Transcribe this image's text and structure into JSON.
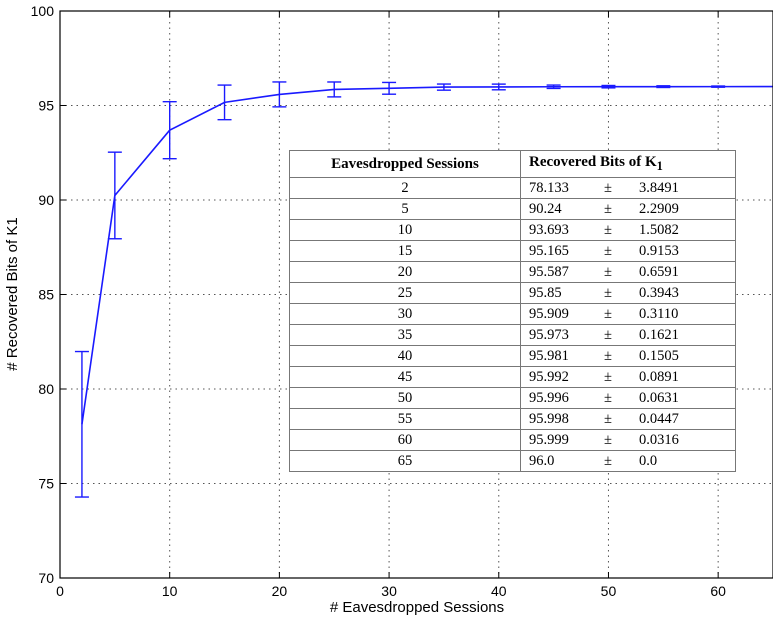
{
  "chart_data": {
    "type": "line",
    "xlabel": "# Eavesdropped Sessions",
    "ylabel": "# Recovered Bits of K1",
    "xlim": [
      0,
      65
    ],
    "ylim": [
      70,
      100
    ],
    "xticks": [
      0,
      10,
      20,
      30,
      40,
      50,
      60
    ],
    "yticks": [
      70,
      75,
      80,
      85,
      90,
      95,
      100
    ],
    "grid": true,
    "line_color": "#1a1aff",
    "series": [
      {
        "x": [
          2,
          5,
          10,
          15,
          20,
          25,
          30,
          35,
          40,
          45,
          50,
          55,
          60,
          65
        ],
        "y": [
          78.133,
          90.24,
          93.693,
          95.165,
          95.587,
          95.85,
          95.909,
          95.973,
          95.981,
          95.992,
          95.996,
          95.998,
          95.999,
          96.0
        ],
        "error": [
          3.8491,
          2.2909,
          1.5082,
          0.9153,
          0.6591,
          0.3943,
          0.311,
          0.1621,
          0.1505,
          0.0891,
          0.0631,
          0.0447,
          0.0316,
          0.0
        ]
      }
    ]
  },
  "table": {
    "header_sessions": "Eavesdropped Sessions",
    "header_recovered_main": "Recovered Bits of K",
    "header_recovered_sub": "1",
    "pm_symbol": "±",
    "rows": [
      {
        "sessions": "2",
        "mean": "78.133",
        "sd": "3.8491"
      },
      {
        "sessions": "5",
        "mean": "90.24",
        "sd": "2.2909"
      },
      {
        "sessions": "10",
        "mean": "93.693",
        "sd": "1.5082"
      },
      {
        "sessions": "15",
        "mean": "95.165",
        "sd": "0.9153"
      },
      {
        "sessions": "20",
        "mean": "95.587",
        "sd": "0.6591"
      },
      {
        "sessions": "25",
        "mean": "95.85",
        "sd": "0.3943"
      },
      {
        "sessions": "30",
        "mean": "95.909",
        "sd": "0.3110"
      },
      {
        "sessions": "35",
        "mean": "95.973",
        "sd": "0.1621"
      },
      {
        "sessions": "40",
        "mean": "95.981",
        "sd": "0.1505"
      },
      {
        "sessions": "45",
        "mean": "95.992",
        "sd": "0.0891"
      },
      {
        "sessions": "50",
        "mean": "95.996",
        "sd": "0.0631"
      },
      {
        "sessions": "55",
        "mean": "95.998",
        "sd": "0.0447"
      },
      {
        "sessions": "60",
        "mean": "95.999",
        "sd": "0.0316"
      },
      {
        "sessions": "65",
        "mean": "96.0",
        "sd": "0.0"
      }
    ]
  }
}
